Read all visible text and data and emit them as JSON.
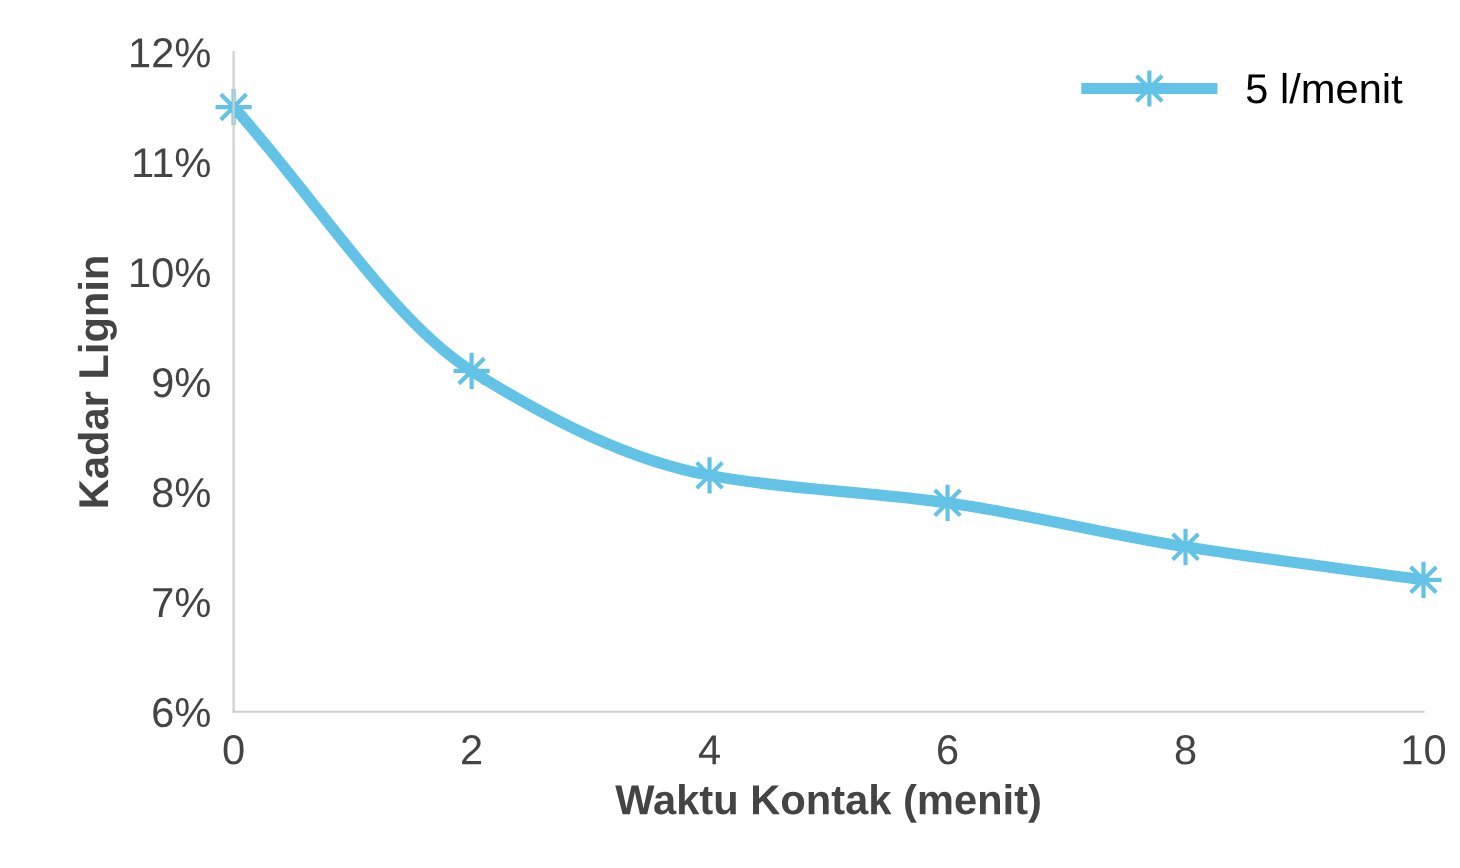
{
  "chart_data": {
    "type": "line",
    "xlabel": "Waktu Kontak (menit)",
    "ylabel": "Kadar Lignin",
    "x": [
      0,
      2,
      4,
      6,
      8,
      10
    ],
    "series": [
      {
        "name": "5 l/menit",
        "color": "#62c3e6",
        "values": [
          11.5,
          9.1,
          8.15,
          7.9,
          7.5,
          7.2
        ]
      }
    ],
    "xlim": [
      0,
      10
    ],
    "xticks": [
      0,
      2,
      4,
      6,
      8,
      10
    ],
    "ylim": [
      6,
      12
    ],
    "yticks": [
      {
        "value": 6,
        "label": "6%"
      },
      {
        "value": 7,
        "label": "7%"
      },
      {
        "value": 8,
        "label": "8%"
      },
      {
        "value": 9,
        "label": "9%"
      },
      {
        "value": 10,
        "label": "10%"
      },
      {
        "value": 11,
        "label": "11%"
      },
      {
        "value": 12,
        "label": "12%"
      }
    ],
    "legend": "top right",
    "marker": "star",
    "line_style": "solid",
    "grid": false
  }
}
